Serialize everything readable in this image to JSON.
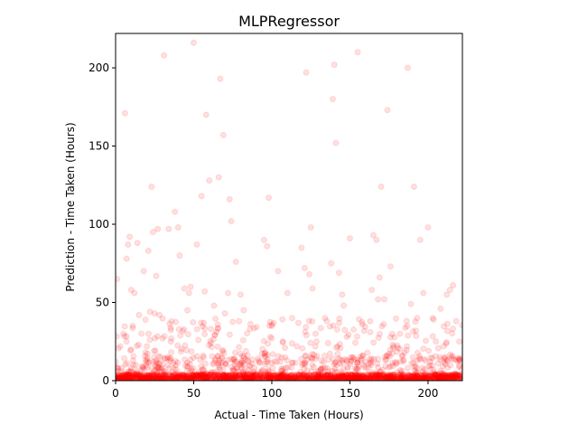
{
  "chart_data": {
    "type": "scatter",
    "title": "MLPRegressor",
    "xlabel": "Actual - Time Taken (Hours)",
    "ylabel": "Prediction - Time Taken (Hours)",
    "xlim": [
      0,
      222
    ],
    "ylim": [
      0,
      222
    ],
    "xticks": [
      0,
      50,
      100,
      150,
      200
    ],
    "yticks": [
      0,
      50,
      100,
      150,
      200
    ],
    "xtick_labels": [
      "0",
      "50",
      "100",
      "150",
      "200"
    ],
    "ytick_labels": [
      "0",
      "50",
      "100",
      "150",
      "200"
    ],
    "grid": false,
    "marker_color": "#ff0000",
    "marker_alpha": 0.12,
    "series": [
      {
        "x": [
          1,
          3,
          5,
          6,
          7,
          7,
          8,
          9,
          10,
          11,
          12,
          14,
          15,
          18,
          20,
          21,
          22,
          23,
          24,
          25,
          26,
          27,
          28,
          30,
          31,
          34,
          38,
          40,
          41,
          44,
          46,
          47,
          48,
          50,
          52,
          53,
          55,
          57,
          58,
          60,
          61,
          63,
          66,
          67,
          69,
          70,
          72,
          73,
          74,
          77,
          79,
          80,
          82,
          86,
          95,
          96,
          97,
          98,
          99,
          100,
          104,
          107,
          110,
          113,
          116,
          119,
          121,
          122,
          124,
          125,
          126,
          128,
          134,
          136,
          138,
          139,
          140,
          141,
          143,
          145,
          146,
          148,
          150,
          152,
          155,
          158,
          160,
          163,
          164,
          165,
          167,
          168,
          169,
          170,
          172,
          174,
          176,
          178,
          182,
          185,
          187,
          189,
          191,
          193,
          195,
          197,
          200,
          203,
          205,
          208,
          210,
          212,
          214,
          216,
          218,
          220
        ],
        "y": [
          65,
          22,
          30,
          171,
          78,
          25,
          87,
          92,
          58,
          35,
          56,
          88,
          42,
          70,
          22,
          83,
          44,
          124,
          95,
          43,
          67,
          97,
          42,
          27,
          208,
          97,
          108,
          98,
          80,
          59,
          45,
          56,
          60,
          216,
          87,
          26,
          118,
          57,
          170,
          128,
          33,
          48,
          130,
          193,
          157,
          43,
          56,
          116,
          102,
          76,
          38,
          55,
          45,
          33,
          90,
          18,
          86,
          117,
          28,
          35,
          70,
          25,
          56,
          40,
          22,
          85,
          72,
          197,
          68,
          98,
          59,
          30,
          40,
          24,
          75,
          180,
          202,
          152,
          69,
          55,
          48,
          28,
          91,
          15,
          210,
          36,
          12,
          31,
          58,
          93,
          90,
          52,
          66,
          124,
          52,
          173,
          73,
          22,
          30,
          18,
          200,
          49,
          124,
          40,
          90,
          56,
          98,
          40,
          25,
          46,
          22,
          55,
          58,
          61,
          38,
          25
        ]
      }
    ]
  }
}
